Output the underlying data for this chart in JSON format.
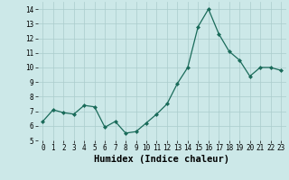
{
  "x": [
    0,
    1,
    2,
    3,
    4,
    5,
    6,
    7,
    8,
    9,
    10,
    11,
    12,
    13,
    14,
    15,
    16,
    17,
    18,
    19,
    20,
    21,
    22,
    23
  ],
  "y": [
    6.3,
    7.1,
    6.9,
    6.8,
    7.4,
    7.3,
    5.9,
    6.3,
    5.5,
    5.6,
    6.2,
    6.8,
    7.5,
    8.9,
    10.0,
    12.8,
    14.0,
    12.3,
    11.1,
    10.5,
    9.4,
    10.0,
    10.0,
    9.8
  ],
  "xlabel": "Humidex (Indice chaleur)",
  "bg_color": "#cce8e8",
  "grid_color": "#aacccc",
  "line_color": "#1a6b5a",
  "marker_color": "#1a6b5a",
  "ylim": [
    5,
    14.5
  ],
  "yticks": [
    5,
    6,
    7,
    8,
    9,
    10,
    11,
    12,
    13,
    14
  ],
  "xticks": [
    0,
    1,
    2,
    3,
    4,
    5,
    6,
    7,
    8,
    9,
    10,
    11,
    12,
    13,
    14,
    15,
    16,
    17,
    18,
    19,
    20,
    21,
    22,
    23
  ],
  "tick_fontsize": 5.5,
  "xlabel_fontsize": 7.5
}
